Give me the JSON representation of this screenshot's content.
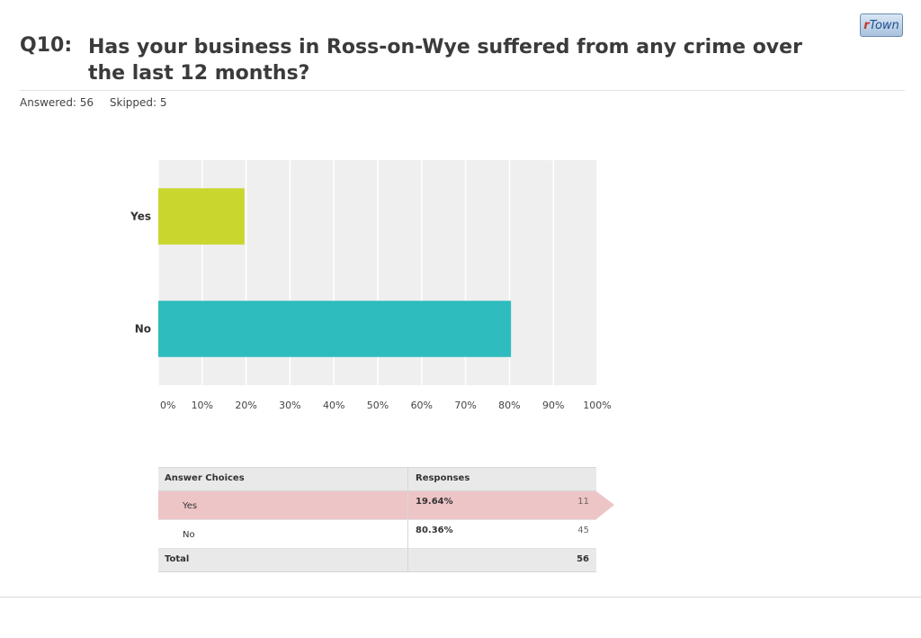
{
  "logo": {
    "r": "r",
    "town": "Town"
  },
  "question": {
    "number": "Q10:",
    "text": "Has your business in Ross-on-Wye suffered from any crime over the last 12 months?"
  },
  "meta": {
    "answered": "Answered: 56",
    "skipped": "Skipped: 5"
  },
  "chart_data": {
    "type": "bar",
    "orientation": "horizontal",
    "categories": [
      "Yes",
      "No"
    ],
    "values": [
      19.64,
      80.36
    ],
    "colors": [
      "#c9d62d",
      "#2fbcbe"
    ],
    "xlim": [
      0,
      100
    ],
    "xticks": [
      "0%",
      "10%",
      "20%",
      "30%",
      "40%",
      "50%",
      "60%",
      "70%",
      "80%",
      "90%",
      "100%"
    ],
    "grid": true
  },
  "table": {
    "headers": [
      "Answer Choices",
      "Responses"
    ],
    "rows": [
      {
        "choice": "Yes",
        "percent": "19.64%",
        "count": "11"
      },
      {
        "choice": "No",
        "percent": "80.36%",
        "count": "45"
      }
    ],
    "total_label": "Total",
    "total_count": "56"
  }
}
